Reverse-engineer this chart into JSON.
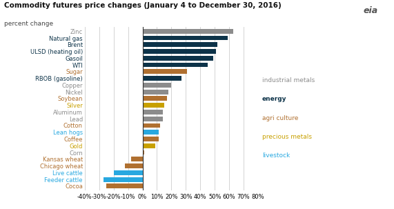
{
  "title": "Commodity futures price changes (January 4 to December 30, 2016)",
  "subtitle": "percent change",
  "categories": [
    "Zinc",
    "Natural gas",
    "Brent",
    "ULSD (heating oil)",
    "Gasoil",
    "WTI",
    "Sugar",
    "RBOB (gasoline)",
    "Copper",
    "Nickel",
    "Soybean",
    "Silver",
    "Aluminum",
    "Lead",
    "Cotton",
    "Lean hogs",
    "Coffee",
    "Gold",
    "Corn",
    "Kansas wheat",
    "Chicago wheat",
    "Live cattle",
    "Feeder cattle",
    "Cocoa"
  ],
  "values": [
    63,
    59,
    52,
    51,
    49,
    45,
    31,
    27,
    20,
    18,
    17,
    15,
    14,
    14,
    12,
    11,
    11,
    9,
    1,
    -8,
    -12,
    -20,
    -27,
    -25
  ],
  "bar_colors": [
    "#8c8c8c",
    "#0d3349",
    "#0d3349",
    "#0d3349",
    "#0d3349",
    "#0d3349",
    "#b07030",
    "#0d3349",
    "#8c8c8c",
    "#8c8c8c",
    "#b07030",
    "#c8a000",
    "#8c8c8c",
    "#8c8c8c",
    "#b07030",
    "#28a8e0",
    "#b07030",
    "#c8a000",
    "#b07030",
    "#b07030",
    "#b07030",
    "#28a8e0",
    "#28a8e0",
    "#b07030"
  ],
  "label_colors": [
    "#8c8c8c",
    "#0d3349",
    "#0d3349",
    "#0d3349",
    "#0d3349",
    "#0d3349",
    "#b07030",
    "#0d3349",
    "#8c8c8c",
    "#8c8c8c",
    "#b07030",
    "#c8a000",
    "#8c8c8c",
    "#8c8c8c",
    "#b07030",
    "#28a8e0",
    "#b07030",
    "#c8a000",
    "#8c8c8c",
    "#b07030",
    "#b07030",
    "#28a8e0",
    "#28a8e0",
    "#b07030"
  ],
  "xlim": [
    -40,
    80
  ],
  "xticks": [
    -40,
    -30,
    -20,
    -10,
    0,
    10,
    20,
    30,
    40,
    50,
    60,
    70,
    80
  ],
  "xtick_labels": [
    "-40%",
    "-30%",
    "-20%",
    "-10%",
    "0%",
    "10%",
    "20%",
    "30%",
    "40%",
    "50%",
    "60%",
    "70%",
    "80%"
  ],
  "legend_items": [
    {
      "label": "industrial metals",
      "color": "#8c8c8c",
      "bold": false
    },
    {
      "label": "energy",
      "color": "#0d3349",
      "bold": true
    },
    {
      "label": "agri culture",
      "color": "#b07030",
      "bold": false
    },
    {
      "label": "precious metals",
      "color": "#c8a000",
      "bold": false
    },
    {
      "label": "livestock",
      "color": "#28a8e0",
      "bold": false
    }
  ],
  "bg_color": "#ffffff",
  "bar_height": 0.7,
  "grid_color": "#cccccc",
  "title_fontsize": 7.5,
  "subtitle_fontsize": 6.5,
  "tick_fontsize": 6.0,
  "label_fontsize": 6.0,
  "legend_fontsize": 6.5
}
